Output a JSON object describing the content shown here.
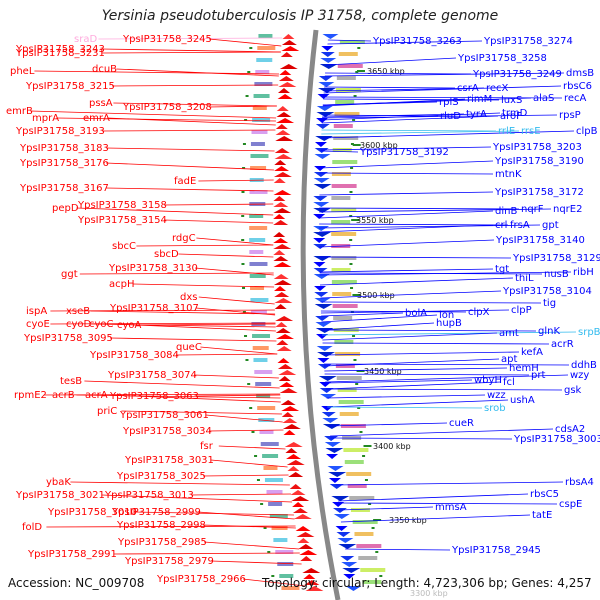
{
  "title": "Yersinia pseudotuberculosis IP 31758, complete genome",
  "footer": {
    "accession": "Accession: NC_009708",
    "summary": "Topology: circular; Length: 4,723,306 bp; Genes: 4,257"
  },
  "colors": {
    "forward": "#ff0000",
    "reverse": "#0000ff",
    "rna_forward": "#ffaadd",
    "rna_reverse": "#33bbee"
  },
  "kbp_labels": [
    "3650 kbp",
    "3600 kbp",
    "3550 kbp",
    "3500 kbp",
    "3450 kbp",
    "3400 kbp",
    "3350 kbp",
    "3300 kbp"
  ],
  "left_labels": [
    "sraD",
    "YpsIP31758_3243",
    "YpsIP31758_3245",
    "YpsIP31758_3231",
    "pheL",
    "dcuB",
    "YpsIP31758_3215",
    "pssA",
    "emrB",
    "YpsIP31758_3208",
    "mprA",
    "emrA",
    "YpsIP31758_3193",
    "YpsIP31758_3183",
    "YpsIP31758_3176",
    "fadE",
    "YpsIP31758_3167",
    "pepD",
    "YpsIP31758_3158",
    "YpsIP31758_3154",
    "rdgC",
    "sbcC",
    "sbcD",
    "YpsIP31758_3130",
    "ggt",
    "acpH",
    "dxs",
    "ispA",
    "xseB",
    "YpsIP31758_3107",
    "cyoE",
    "cyoD",
    "cyoC",
    "cyoA",
    "YpsIP31758_3095",
    "queC",
    "YpsIP31758_3084",
    "YpsIP31758_3074",
    "tesB",
    "rpmE2",
    "acrB",
    "acrA",
    "YpsIP31758_3063",
    "priC",
    "YpsIP31758_3061",
    "YpsIP31758_3034",
    "fsr",
    "YpsIP31758_3031",
    "YpsIP31758_3025",
    "ybaK",
    "YpsIP31758_3021",
    "YpsIP31758_3013",
    "YpsIP31758_3010",
    "YpsIP31758_2999",
    "folD",
    "YpsIP31758_2998",
    "YpsIP31758_2985",
    "YpsIP31758_2991",
    "YpsIP31758_2979",
    "YpsIP31758_2966"
  ],
  "right_labels": [
    "YpsIP31758_3263",
    "YpsIP31758_3274",
    "YpsIP31758_3258",
    "YpsIP31758_3249",
    "dmsB",
    "rbsC6",
    "csrA",
    "recX",
    "alaS",
    "recA",
    "rplS",
    "rimM",
    "luxS",
    "rpsP",
    "trmD",
    "rluD",
    "tyrA",
    "aroF",
    "rrlE",
    "rrsE",
    "clpB",
    "YpsIP31758_3192",
    "YpsIP31758_3203",
    "YpsIP31758_3190",
    "mtnK",
    "YpsIP31758_3172",
    "dinB",
    "nqrF",
    "nqrE2",
    "crl",
    "frsA",
    "gpt",
    "YpsIP31758_3140",
    "YpsIP31758_3129",
    "tgt",
    "thiL",
    "nusB",
    "ribH",
    "YpsIP31758_3104",
    "tig",
    "bolA",
    "lon",
    "clpX",
    "clpP",
    "hupB",
    "glnK",
    "srpB",
    "amt",
    "acrR",
    "kefA",
    "apt",
    "ddhB",
    "hemH",
    "wzy",
    "prt",
    "wbyH",
    "fcl",
    "gsk",
    "wzz",
    "ushA",
    "srob",
    "cueR",
    "cdsA2",
    "YpsIP31758_3003",
    "rbsA4",
    "rbsC5",
    "cspE",
    "mmsA",
    "tatE",
    "YpsIP31758_2945"
  ]
}
